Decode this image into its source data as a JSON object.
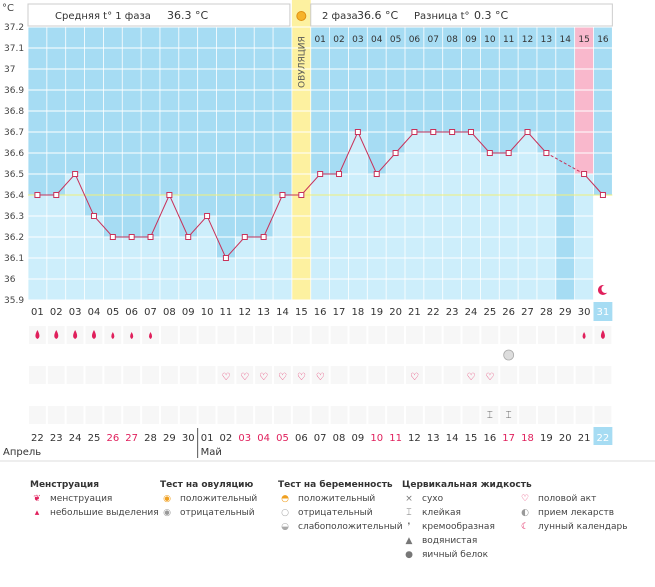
{
  "colors": {
    "grid_bg": "#a6dcf3",
    "grid_line": "#ffffff",
    "bar_fill": "#cdeefb",
    "ovulation": "#fdf1a0",
    "pink_col": "#f9b8cc",
    "line": "#c8325a",
    "coverline": "#f0f07a",
    "accent_red": "#e0205c"
  },
  "header": {
    "unit": "°C",
    "phase1_label": "Средняя t° 1 фаза",
    "phase1_value": "36.3 °C",
    "phase2_label": "2 фаза",
    "phase2_value": "36.6 °C",
    "diff_label": "Разница t°",
    "diff_value": "0.3 °C",
    "ovulation_label": "ОВУЛЯЦИЯ"
  },
  "phase2_days": [
    "01",
    "02",
    "03",
    "04",
    "05",
    "06",
    "07",
    "08",
    "09",
    "10",
    "11",
    "12",
    "13",
    "14",
    "15",
    "16"
  ],
  "months": [
    "Апрель",
    "Май"
  ],
  "chart_data": {
    "type": "line",
    "ylabel": "°C",
    "ylim": [
      35.9,
      37.2
    ],
    "yticks": [
      "37.2",
      "37.1",
      "37",
      "36.9",
      "36.8",
      "36.7",
      "36.6",
      "36.5",
      "36.4",
      "36.3",
      "36.2",
      "36.1",
      "36",
      "35.9"
    ],
    "cycle_days": [
      "01",
      "02",
      "03",
      "04",
      "05",
      "06",
      "07",
      "08",
      "09",
      "10",
      "11",
      "12",
      "13",
      "14",
      "15",
      "16",
      "17",
      "18",
      "19",
      "20",
      "21",
      "22",
      "23",
      "24",
      "25",
      "26",
      "27",
      "28",
      "29",
      "30",
      "31"
    ],
    "dates": [
      "22",
      "23",
      "24",
      "25",
      "26",
      "27",
      "28",
      "29",
      "30",
      "01",
      "02",
      "03",
      "04",
      "05",
      "06",
      "07",
      "08",
      "09",
      "10",
      "11",
      "12",
      "13",
      "14",
      "15",
      "16",
      "17",
      "18",
      "19",
      "20",
      "21",
      "22"
    ],
    "weekend_dates": [
      4,
      5,
      11,
      12,
      13,
      18,
      19,
      25,
      26
    ],
    "series": [
      {
        "values": [
          36.4,
          36.4,
          36.5,
          36.3,
          36.2,
          36.2,
          36.2,
          36.4,
          36.2,
          36.3,
          36.1,
          36.2,
          36.2,
          36.4,
          36.4,
          36.5,
          36.5,
          36.7,
          36.5,
          36.6,
          36.7,
          36.7,
          36.7,
          36.7,
          36.6,
          36.6,
          36.7,
          36.6,
          null,
          36.5,
          36.4
        ]
      }
    ],
    "coverline": 36.4,
    "ovulation_day": 15,
    "highlight_day": 30,
    "current_day": 31,
    "icons": {
      "menstruation_big": [
        1,
        2,
        3,
        4,
        31
      ],
      "menstruation_small": [
        5,
        6,
        7,
        30
      ],
      "sex": [
        11,
        12,
        13,
        14,
        15,
        16,
        21,
        24,
        25
      ],
      "pregnancy_weak": [
        26
      ],
      "cervical_sticky": [
        25,
        26
      ],
      "lunar": [
        31
      ]
    }
  },
  "legend": [
    {
      "title": "Менструация",
      "items": [
        {
          "icon": "drop-big-icon",
          "label": "менструация"
        },
        {
          "icon": "drop-small-icon",
          "label": "небольшие выделения"
        }
      ]
    },
    {
      "title": "Тест на овуляцию",
      "items": [
        {
          "icon": "sun-positive-icon",
          "label": "положительный"
        },
        {
          "icon": "sun-negative-icon",
          "label": "отрицательный"
        }
      ]
    },
    {
      "title": "Тест на беременность",
      "items": [
        {
          "icon": "preg-positive-icon",
          "label": "положительный"
        },
        {
          "icon": "preg-negative-icon",
          "label": "отрицательный"
        },
        {
          "icon": "preg-weak-icon",
          "label": "слабоположительный"
        }
      ]
    },
    {
      "title": "Цервикальная жидкость",
      "items": [
        {
          "icon": "cross-icon",
          "label": "сухо"
        },
        {
          "icon": "sticky-icon",
          "label": "клейкая"
        },
        {
          "icon": "cream-icon",
          "label": "кремообразная"
        },
        {
          "icon": "water-drop-icon",
          "label": "водянистая"
        },
        {
          "icon": "egg-white-icon",
          "label": "яичный белок"
        }
      ]
    },
    {
      "title": "",
      "items": [
        {
          "icon": "heart-icon",
          "label": "половой акт"
        },
        {
          "icon": "pill-icon",
          "label": "прием лекарств"
        },
        {
          "icon": "moon-icon",
          "label": "лунный календарь"
        }
      ]
    }
  ]
}
